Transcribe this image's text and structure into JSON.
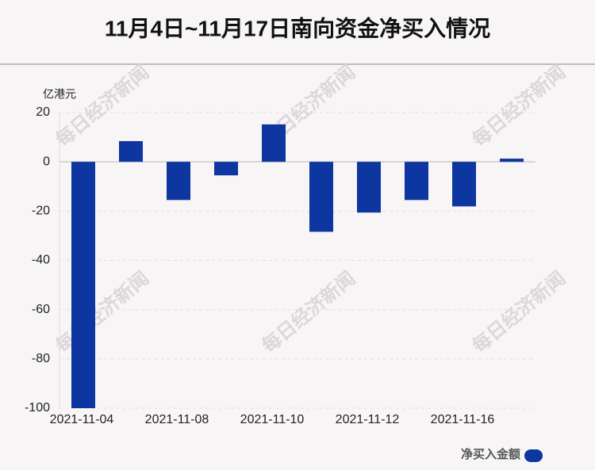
{
  "chart_data": {
    "type": "bar",
    "title": "11月4日~11月17日南向资金净买入情况",
    "y_label": "亿港元",
    "watermark": "每日经济新闻",
    "categories": [
      "2021-11-04",
      null,
      "2021-11-08",
      null,
      "2021-11-10",
      null,
      "2021-11-12",
      null,
      "2021-11-16",
      null
    ],
    "series": [
      {
        "name": "净买入金额",
        "color": "#0d36a0",
        "values": [
          -100,
          8.4,
          -15.5,
          -5.5,
          15.2,
          -28.4,
          -20.6,
          -15.5,
          -18.1,
          1.3
        ]
      }
    ],
    "ylim": [
      -100,
      20
    ],
    "yticks": [
      -100,
      -80,
      -60,
      -40,
      -20,
      0,
      20
    ],
    "grid": true
  }
}
